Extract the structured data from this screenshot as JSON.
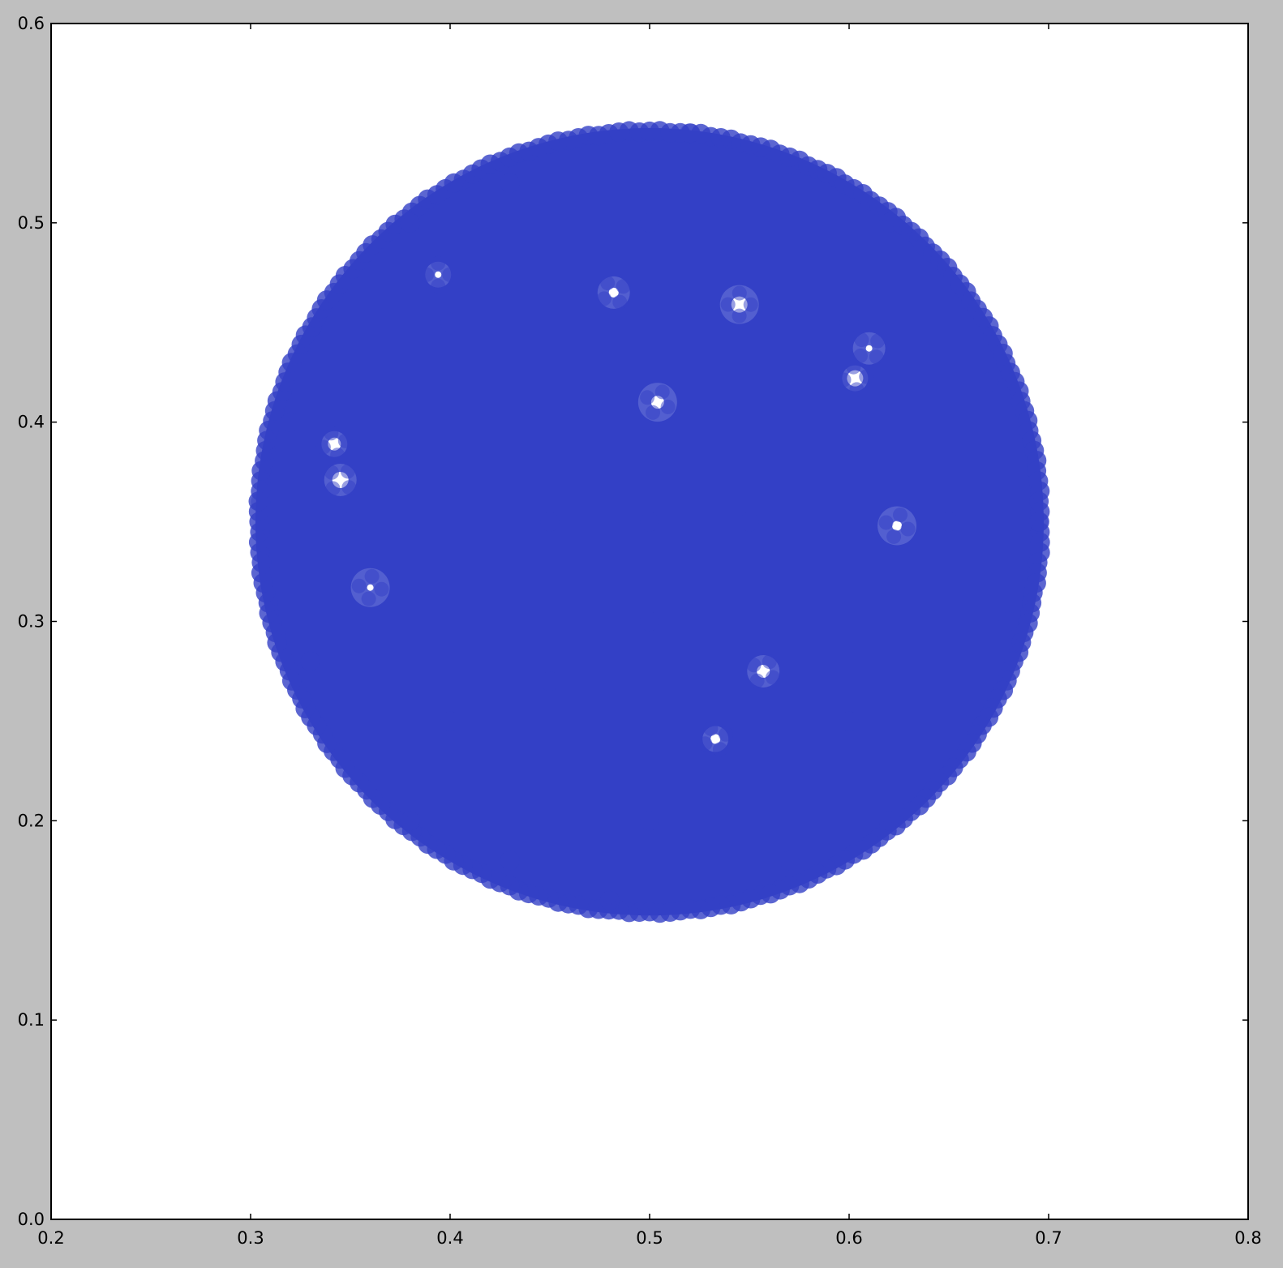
{
  "colors": {
    "figure_background": "#bfbfbf",
    "axes_background": "#ffffff",
    "marker_fill": "#3340c6",
    "axis_line": "#000000"
  },
  "chart_data": {
    "type": "scatter",
    "title": "",
    "xlabel": "",
    "ylabel": "",
    "xlim": [
      0.2,
      0.8
    ],
    "ylim": [
      0.0,
      0.6
    ],
    "x_ticks": [
      "0.2",
      "0.3",
      "0.4",
      "0.5",
      "0.6",
      "0.7",
      "0.8"
    ],
    "y_ticks": [
      "0.0",
      "0.1",
      "0.2",
      "0.3",
      "0.4",
      "0.5",
      "0.6"
    ],
    "grid": false,
    "legend": "none",
    "series": [
      {
        "marker": "circle",
        "alpha": 0.5,
        "distribution": "uniform disc",
        "center": [
          0.5,
          0.35
        ],
        "radius": 0.2,
        "points": [
          [
            0.5,
            0.35
          ],
          [
            0.55,
            0.35
          ],
          [
            0.45,
            0.35
          ],
          [
            0.5,
            0.4
          ],
          [
            0.5,
            0.3
          ],
          [
            0.4,
            0.45
          ],
          [
            0.6,
            0.45
          ],
          [
            0.4,
            0.25
          ],
          [
            0.6,
            0.25
          ],
          [
            0.35,
            0.35
          ],
          [
            0.65,
            0.35
          ],
          [
            0.5,
            0.5
          ],
          [
            0.5,
            0.2
          ],
          [
            0.43,
            0.52
          ],
          [
            0.57,
            0.52
          ],
          [
            0.43,
            0.18
          ],
          [
            0.57,
            0.18
          ],
          [
            0.33,
            0.28
          ],
          [
            0.67,
            0.42
          ],
          [
            0.32,
            0.4
          ],
          [
            0.68,
            0.3
          ],
          [
            0.48,
            0.16
          ],
          [
            0.52,
            0.545
          ],
          [
            0.305,
            0.36
          ],
          [
            0.695,
            0.35
          ],
          [
            0.38,
            0.5
          ],
          [
            0.62,
            0.2
          ],
          [
            0.38,
            0.2
          ],
          [
            0.62,
            0.5
          ],
          [
            0.45,
            0.27
          ]
        ],
        "gaps": [
          [
            0.394,
            0.474
          ],
          [
            0.482,
            0.465
          ],
          [
            0.504,
            0.41
          ],
          [
            0.603,
            0.422
          ],
          [
            0.61,
            0.437
          ],
          [
            0.624,
            0.348
          ],
          [
            0.342,
            0.389
          ],
          [
            0.345,
            0.371
          ],
          [
            0.36,
            0.317
          ],
          [
            0.533,
            0.241
          ],
          [
            0.557,
            0.275
          ],
          [
            0.545,
            0.459
          ]
        ]
      }
    ]
  }
}
